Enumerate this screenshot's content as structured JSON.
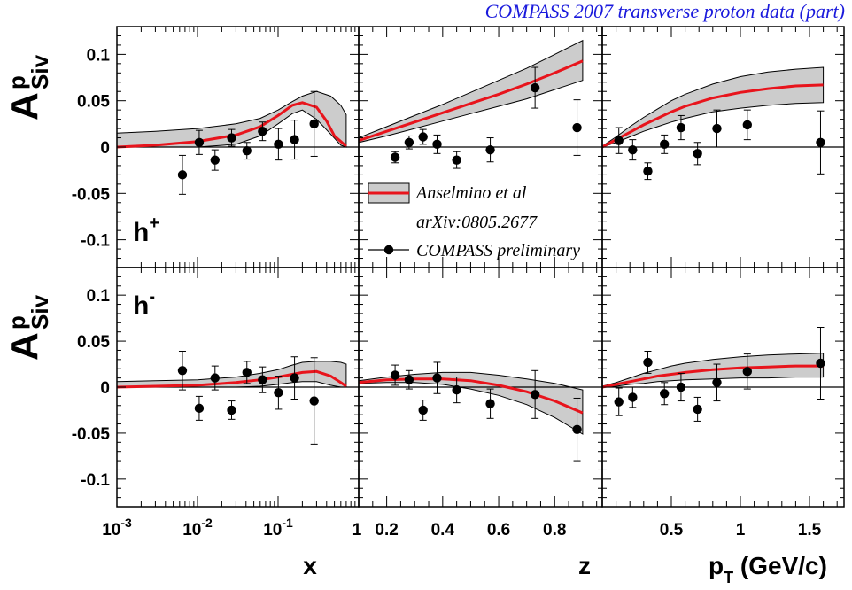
{
  "title": "COMPASS 2007 transverse proton data  (part)",
  "y_axis": {
    "label_main": "A",
    "label_sup": "p",
    "label_sub": "Siv",
    "range": [
      -0.13,
      0.13
    ],
    "ticks": [
      -0.1,
      -0.05,
      0,
      0.05,
      0.1
    ],
    "tick_labels": [
      "-0.1",
      "-0.05",
      "0",
      "0.05",
      "0.1"
    ]
  },
  "columns": [
    {
      "variable": "x",
      "xlabel": "x",
      "scale": "log",
      "range": [
        0.001,
        1
      ],
      "ticks": [
        0.001,
        0.01,
        0.1,
        1
      ],
      "tick_labels": [
        {
          "base": "10",
          "exp": "-3"
        },
        {
          "base": "10",
          "exp": "-2"
        },
        {
          "base": "10",
          "exp": "-1"
        },
        {
          "base": "1",
          "exp": ""
        }
      ]
    },
    {
      "variable": "z",
      "xlabel": "z",
      "scale": "linear",
      "range": [
        0.1,
        0.97
      ],
      "ticks": [
        0.2,
        0.4,
        0.6,
        0.8
      ],
      "tick_labels": [
        {
          "base": "0.2",
          "exp": ""
        },
        {
          "base": "0.4",
          "exp": ""
        },
        {
          "base": "0.6",
          "exp": ""
        },
        {
          "base": "0.8",
          "exp": ""
        }
      ]
    },
    {
      "variable": "pT",
      "xlabel_main": "p",
      "xlabel_sub": "T",
      "xlabel_rest": " (GeV/c)",
      "scale": "linear",
      "range": [
        0,
        1.75
      ],
      "ticks": [
        0.5,
        1,
        1.5
      ],
      "tick_labels": [
        {
          "base": "0.5",
          "exp": ""
        },
        {
          "base": "1",
          "exp": ""
        },
        {
          "base": "1.5",
          "exp": ""
        }
      ]
    }
  ],
  "rows": [
    {
      "hadron": "h",
      "charge": "+"
    },
    {
      "hadron": "h",
      "charge": "-"
    }
  ],
  "legend": {
    "placement": "top-middle-bottom",
    "entries": [
      {
        "kind": "band",
        "line1": "Anselmino et al",
        "line2": "arXiv:0805.2677"
      },
      {
        "kind": "points",
        "line1": "COMPASS preliminary"
      }
    ]
  },
  "colors": {
    "curve": "#e8141c",
    "band_fill": "#cccccc",
    "points": "#000000",
    "title": "#1a1adc"
  },
  "chart_data": [
    {
      "type": "scatter",
      "row": "h+",
      "column": "x",
      "points": [
        {
          "x": 0.0065,
          "y": -0.03,
          "err": 0.021
        },
        {
          "x": 0.0105,
          "y": 0.005,
          "err": 0.013
        },
        {
          "x": 0.0165,
          "y": -0.014,
          "err": 0.011
        },
        {
          "x": 0.0265,
          "y": 0.01,
          "err": 0.009
        },
        {
          "x": 0.041,
          "y": -0.004,
          "err": 0.009
        },
        {
          "x": 0.064,
          "y": 0.017,
          "err": 0.01
        },
        {
          "x": 0.101,
          "y": 0.003,
          "err": 0.017
        },
        {
          "x": 0.16,
          "y": 0.008,
          "err": 0.021
        },
        {
          "x": 0.28,
          "y": 0.025,
          "err": 0.035
        }
      ],
      "curve": [
        [
          0.001,
          0.0
        ],
        [
          0.003,
          0.002
        ],
        [
          0.01,
          0.006
        ],
        [
          0.03,
          0.013
        ],
        [
          0.06,
          0.022
        ],
        [
          0.1,
          0.034
        ],
        [
          0.15,
          0.045
        ],
        [
          0.2,
          0.048
        ],
        [
          0.3,
          0.043
        ],
        [
          0.4,
          0.028
        ],
        [
          0.5,
          0.012
        ],
        [
          0.7,
          0.001
        ]
      ],
      "band_upper": [
        [
          0.001,
          0.015
        ],
        [
          0.003,
          0.017
        ],
        [
          0.01,
          0.02
        ],
        [
          0.03,
          0.025
        ],
        [
          0.06,
          0.031
        ],
        [
          0.1,
          0.04
        ],
        [
          0.15,
          0.049
        ],
        [
          0.2,
          0.055
        ],
        [
          0.3,
          0.06
        ],
        [
          0.45,
          0.055
        ],
        [
          0.6,
          0.045
        ],
        [
          0.7,
          0.035
        ]
      ],
      "band_lower": [
        [
          0.001,
          0.0
        ],
        [
          0.003,
          0.0
        ],
        [
          0.01,
          0.0
        ],
        [
          0.03,
          0.003
        ],
        [
          0.06,
          0.012
        ],
        [
          0.1,
          0.025
        ],
        [
          0.15,
          0.036
        ],
        [
          0.2,
          0.04
        ],
        [
          0.3,
          0.03
        ],
        [
          0.45,
          0.014
        ],
        [
          0.6,
          0.002
        ],
        [
          0.7,
          0.0
        ]
      ]
    },
    {
      "type": "scatter",
      "row": "h+",
      "column": "z",
      "points": [
        {
          "x": 0.23,
          "y": -0.011,
          "err": 0.006
        },
        {
          "x": 0.28,
          "y": 0.005,
          "err": 0.007
        },
        {
          "x": 0.33,
          "y": 0.011,
          "err": 0.008
        },
        {
          "x": 0.38,
          "y": 0.003,
          "err": 0.01
        },
        {
          "x": 0.45,
          "y": -0.014,
          "err": 0.009
        },
        {
          "x": 0.57,
          "y": -0.003,
          "err": 0.013
        },
        {
          "x": 0.73,
          "y": 0.064,
          "err": 0.022
        },
        {
          "x": 0.88,
          "y": 0.021,
          "err": 0.03
        }
      ],
      "curve": [
        [
          0.1,
          0.007
        ],
        [
          0.2,
          0.017
        ],
        [
          0.3,
          0.027
        ],
        [
          0.4,
          0.037
        ],
        [
          0.5,
          0.047
        ],
        [
          0.6,
          0.057
        ],
        [
          0.7,
          0.068
        ],
        [
          0.8,
          0.08
        ],
        [
          0.9,
          0.093
        ]
      ],
      "band_upper": [
        [
          0.1,
          0.01
        ],
        [
          0.2,
          0.022
        ],
        [
          0.3,
          0.034
        ],
        [
          0.4,
          0.046
        ],
        [
          0.5,
          0.059
        ],
        [
          0.6,
          0.072
        ],
        [
          0.7,
          0.085
        ],
        [
          0.8,
          0.1
        ],
        [
          0.9,
          0.115
        ]
      ],
      "band_lower": [
        [
          0.1,
          0.005
        ],
        [
          0.2,
          0.012
        ],
        [
          0.3,
          0.02
        ],
        [
          0.4,
          0.028
        ],
        [
          0.5,
          0.036
        ],
        [
          0.6,
          0.044
        ],
        [
          0.7,
          0.052
        ],
        [
          0.8,
          0.062
        ],
        [
          0.9,
          0.072
        ]
      ]
    },
    {
      "type": "scatter",
      "row": "h+",
      "column": "pT",
      "points": [
        {
          "x": 0.12,
          "y": 0.007,
          "err": 0.014
        },
        {
          "x": 0.22,
          "y": -0.003,
          "err": 0.011
        },
        {
          "x": 0.33,
          "y": -0.026,
          "err": 0.009
        },
        {
          "x": 0.45,
          "y": 0.003,
          "err": 0.01
        },
        {
          "x": 0.57,
          "y": 0.021,
          "err": 0.013
        },
        {
          "x": 0.69,
          "y": -0.007,
          "err": 0.012
        },
        {
          "x": 0.83,
          "y": 0.02,
          "err": 0.02
        },
        {
          "x": 1.05,
          "y": 0.024,
          "err": 0.016
        },
        {
          "x": 1.58,
          "y": 0.005,
          "err": 0.034
        }
      ],
      "curve": [
        [
          0.0,
          0.0
        ],
        [
          0.1,
          0.008
        ],
        [
          0.2,
          0.016
        ],
        [
          0.3,
          0.024
        ],
        [
          0.4,
          0.031
        ],
        [
          0.5,
          0.038
        ],
        [
          0.6,
          0.044
        ],
        [
          0.8,
          0.053
        ],
        [
          1.0,
          0.059
        ],
        [
          1.2,
          0.063
        ],
        [
          1.4,
          0.066
        ],
        [
          1.6,
          0.067
        ]
      ],
      "band_upper": [
        [
          0.0,
          0.001
        ],
        [
          0.1,
          0.011
        ],
        [
          0.2,
          0.022
        ],
        [
          0.3,
          0.032
        ],
        [
          0.4,
          0.041
        ],
        [
          0.5,
          0.05
        ],
        [
          0.6,
          0.057
        ],
        [
          0.8,
          0.068
        ],
        [
          1.0,
          0.076
        ],
        [
          1.2,
          0.081
        ],
        [
          1.4,
          0.084
        ],
        [
          1.6,
          0.086
        ]
      ],
      "band_lower": [
        [
          0.0,
          0.0
        ],
        [
          0.1,
          0.005
        ],
        [
          0.2,
          0.011
        ],
        [
          0.3,
          0.017
        ],
        [
          0.4,
          0.022
        ],
        [
          0.5,
          0.027
        ],
        [
          0.6,
          0.031
        ],
        [
          0.8,
          0.038
        ],
        [
          1.0,
          0.042
        ],
        [
          1.2,
          0.045
        ],
        [
          1.4,
          0.047
        ],
        [
          1.6,
          0.048
        ]
      ]
    },
    {
      "type": "scatter",
      "row": "h-",
      "column": "x",
      "points": [
        {
          "x": 0.0065,
          "y": 0.018,
          "err": 0.021
        },
        {
          "x": 0.0105,
          "y": -0.023,
          "err": 0.013
        },
        {
          "x": 0.0165,
          "y": 0.01,
          "err": 0.013
        },
        {
          "x": 0.0265,
          "y": -0.025,
          "err": 0.01
        },
        {
          "x": 0.041,
          "y": 0.016,
          "err": 0.012
        },
        {
          "x": 0.064,
          "y": 0.008,
          "err": 0.014
        },
        {
          "x": 0.101,
          "y": -0.006,
          "err": 0.018
        },
        {
          "x": 0.16,
          "y": 0.01,
          "err": 0.023
        },
        {
          "x": 0.28,
          "y": -0.015,
          "err": 0.047
        }
      ],
      "curve": [
        [
          0.001,
          0.0
        ],
        [
          0.003,
          0.001
        ],
        [
          0.01,
          0.002
        ],
        [
          0.03,
          0.005
        ],
        [
          0.06,
          0.008
        ],
        [
          0.1,
          0.011
        ],
        [
          0.15,
          0.014
        ],
        [
          0.2,
          0.016
        ],
        [
          0.3,
          0.017
        ],
        [
          0.45,
          0.012
        ],
        [
          0.6,
          0.005
        ],
        [
          0.7,
          0.001
        ]
      ],
      "band_upper": [
        [
          0.001,
          0.006
        ],
        [
          0.003,
          0.007
        ],
        [
          0.01,
          0.008
        ],
        [
          0.03,
          0.011
        ],
        [
          0.06,
          0.015
        ],
        [
          0.1,
          0.019
        ],
        [
          0.15,
          0.024
        ],
        [
          0.2,
          0.027
        ],
        [
          0.3,
          0.028
        ],
        [
          0.45,
          0.028
        ],
        [
          0.6,
          0.027
        ],
        [
          0.7,
          0.025
        ]
      ],
      "band_lower": [
        [
          0.001,
          0.0
        ],
        [
          0.003,
          0.0
        ],
        [
          0.01,
          0.0
        ],
        [
          0.03,
          0.0
        ],
        [
          0.06,
          0.001
        ],
        [
          0.1,
          0.003
        ],
        [
          0.15,
          0.005
        ],
        [
          0.2,
          0.006
        ],
        [
          0.3,
          0.006
        ],
        [
          0.45,
          0.002
        ],
        [
          0.6,
          0.0
        ],
        [
          0.7,
          0.0
        ]
      ]
    },
    {
      "type": "scatter",
      "row": "h-",
      "column": "z",
      "points": [
        {
          "x": 0.23,
          "y": 0.013,
          "err": 0.011
        },
        {
          "x": 0.28,
          "y": 0.008,
          "err": 0.01
        },
        {
          "x": 0.33,
          "y": -0.025,
          "err": 0.011
        },
        {
          "x": 0.38,
          "y": 0.01,
          "err": 0.017
        },
        {
          "x": 0.45,
          "y": -0.003,
          "err": 0.014
        },
        {
          "x": 0.57,
          "y": -0.018,
          "err": 0.016
        },
        {
          "x": 0.73,
          "y": -0.008,
          "err": 0.026
        },
        {
          "x": 0.88,
          "y": -0.046,
          "err": 0.034
        }
      ],
      "curve": [
        [
          0.1,
          0.005
        ],
        [
          0.2,
          0.008
        ],
        [
          0.3,
          0.009
        ],
        [
          0.4,
          0.009
        ],
        [
          0.5,
          0.007
        ],
        [
          0.6,
          0.002
        ],
        [
          0.7,
          -0.005
        ],
        [
          0.8,
          -0.015
        ],
        [
          0.9,
          -0.028
        ]
      ],
      "band_upper": [
        [
          0.1,
          0.007
        ],
        [
          0.2,
          0.011
        ],
        [
          0.3,
          0.014
        ],
        [
          0.4,
          0.016
        ],
        [
          0.5,
          0.016
        ],
        [
          0.6,
          0.013
        ],
        [
          0.7,
          0.009
        ],
        [
          0.8,
          0.004
        ],
        [
          0.9,
          -0.003
        ]
      ],
      "band_lower": [
        [
          0.1,
          0.004
        ],
        [
          0.2,
          0.005
        ],
        [
          0.3,
          0.005
        ],
        [
          0.4,
          0.003
        ],
        [
          0.5,
          -0.002
        ],
        [
          0.6,
          -0.009
        ],
        [
          0.7,
          -0.019
        ],
        [
          0.8,
          -0.033
        ],
        [
          0.9,
          -0.051
        ]
      ]
    },
    {
      "type": "scatter",
      "row": "h-",
      "column": "pT",
      "points": [
        {
          "x": 0.12,
          "y": -0.016,
          "err": 0.015
        },
        {
          "x": 0.22,
          "y": -0.011,
          "err": 0.011
        },
        {
          "x": 0.33,
          "y": 0.027,
          "err": 0.012
        },
        {
          "x": 0.45,
          "y": -0.007,
          "err": 0.012
        },
        {
          "x": 0.57,
          "y": 0.0,
          "err": 0.015
        },
        {
          "x": 0.69,
          "y": -0.024,
          "err": 0.013
        },
        {
          "x": 0.83,
          "y": 0.005,
          "err": 0.02
        },
        {
          "x": 1.05,
          "y": 0.017,
          "err": 0.019
        },
        {
          "x": 1.58,
          "y": 0.026,
          "err": 0.039
        }
      ],
      "curve": [
        [
          0.0,
          0.0
        ],
        [
          0.1,
          0.003
        ],
        [
          0.2,
          0.006
        ],
        [
          0.3,
          0.009
        ],
        [
          0.4,
          0.012
        ],
        [
          0.5,
          0.014
        ],
        [
          0.6,
          0.016
        ],
        [
          0.8,
          0.019
        ],
        [
          1.0,
          0.021
        ],
        [
          1.2,
          0.022
        ],
        [
          1.4,
          0.023
        ],
        [
          1.6,
          0.023
        ]
      ],
      "band_upper": [
        [
          0.0,
          0.001
        ],
        [
          0.1,
          0.005
        ],
        [
          0.2,
          0.01
        ],
        [
          0.3,
          0.015
        ],
        [
          0.4,
          0.019
        ],
        [
          0.5,
          0.023
        ],
        [
          0.6,
          0.026
        ],
        [
          0.8,
          0.03
        ],
        [
          1.0,
          0.033
        ],
        [
          1.2,
          0.035
        ],
        [
          1.4,
          0.036
        ],
        [
          1.6,
          0.037
        ]
      ],
      "band_lower": [
        [
          0.0,
          0.0
        ],
        [
          0.1,
          0.001
        ],
        [
          0.2,
          0.003
        ],
        [
          0.3,
          0.004
        ],
        [
          0.4,
          0.006
        ],
        [
          0.5,
          0.007
        ],
        [
          0.6,
          0.008
        ],
        [
          0.8,
          0.009
        ],
        [
          1.0,
          0.01
        ],
        [
          1.2,
          0.01
        ],
        [
          1.4,
          0.011
        ],
        [
          1.6,
          0.011
        ]
      ]
    }
  ]
}
